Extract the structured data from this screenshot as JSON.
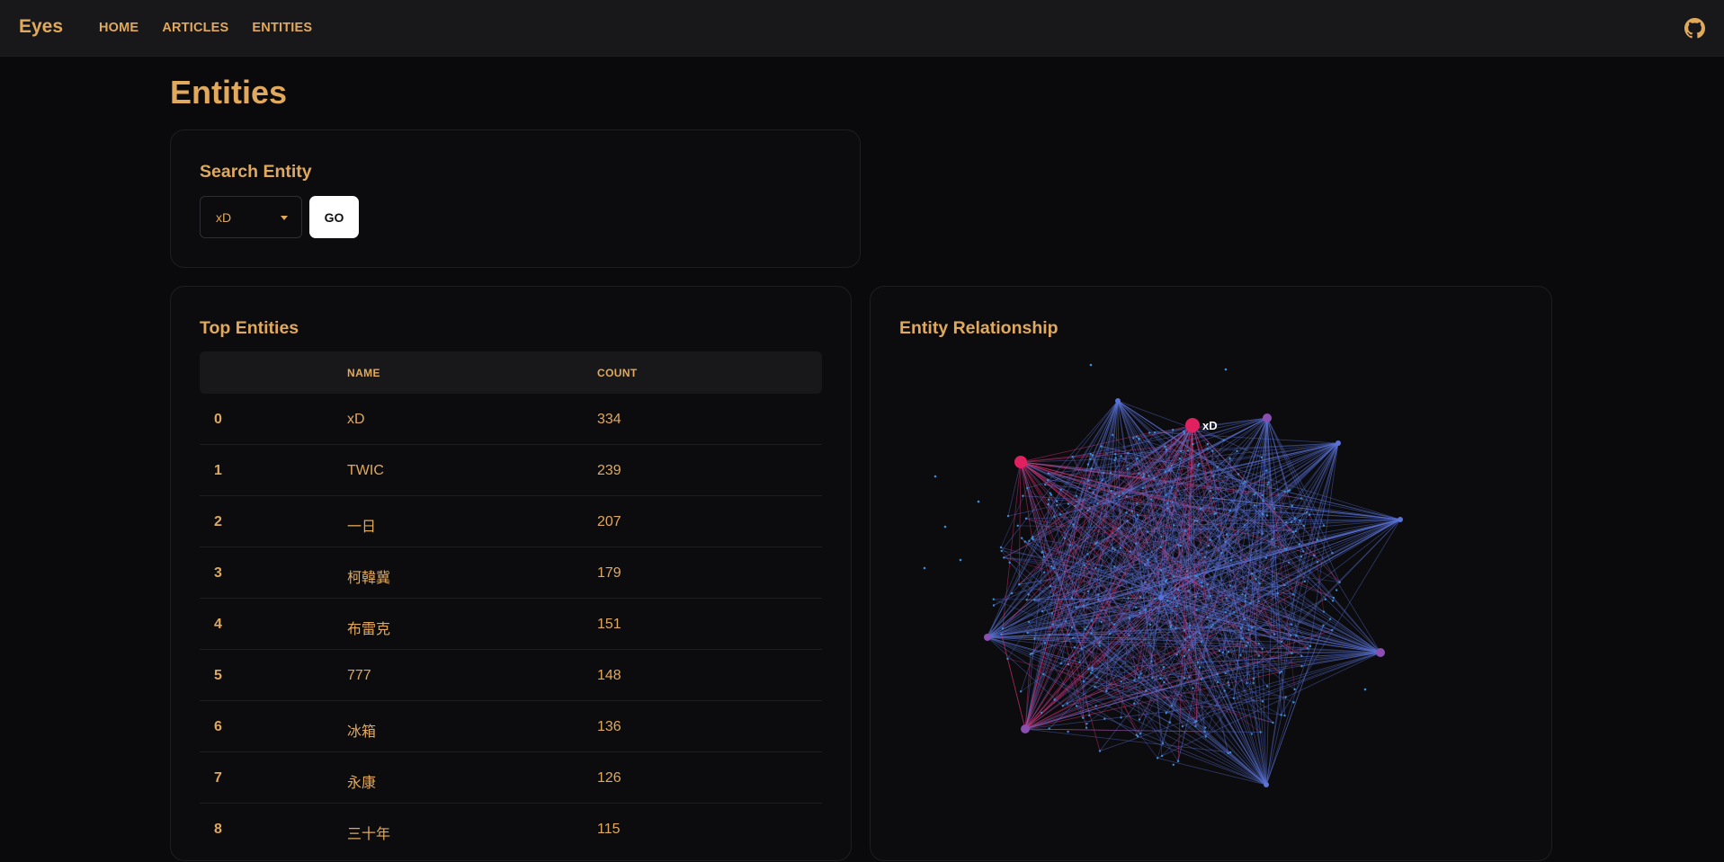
{
  "nav": {
    "brand": "Eyes",
    "links": [
      "HOME",
      "ARTICLES",
      "ENTITIES"
    ]
  },
  "page": {
    "title": "Entities"
  },
  "search": {
    "title": "Search Entity",
    "selected": "xD",
    "go_label": "GO"
  },
  "top_entities": {
    "title": "Top Entities",
    "columns": [
      "",
      "NAME",
      "COUNT"
    ],
    "rows": [
      {
        "idx": "0",
        "name": "xD",
        "count": "334"
      },
      {
        "idx": "1",
        "name": "TWIC",
        "count": "239"
      },
      {
        "idx": "2",
        "name": "一日",
        "count": "207"
      },
      {
        "idx": "3",
        "name": "柯韓冀",
        "count": "179"
      },
      {
        "idx": "4",
        "name": "布雷克",
        "count": "151"
      },
      {
        "idx": "5",
        "name": "777",
        "count": "148"
      },
      {
        "idx": "6",
        "name": "冰箱",
        "count": "136"
      },
      {
        "idx": "7",
        "name": "永康",
        "count": "126"
      },
      {
        "idx": "8",
        "name": "三十年",
        "count": "115"
      }
    ]
  },
  "graph": {
    "title": "Entity Relationship",
    "highlight_label": "xD",
    "colors": {
      "link_blue": "#5b73d6",
      "link_pink": "#d0306e",
      "node_blue": "#3b8fd9",
      "node_pink": "#e0205f",
      "node_purple": "#8a4fb0"
    },
    "icons": {
      "repo": "github-icon"
    }
  }
}
